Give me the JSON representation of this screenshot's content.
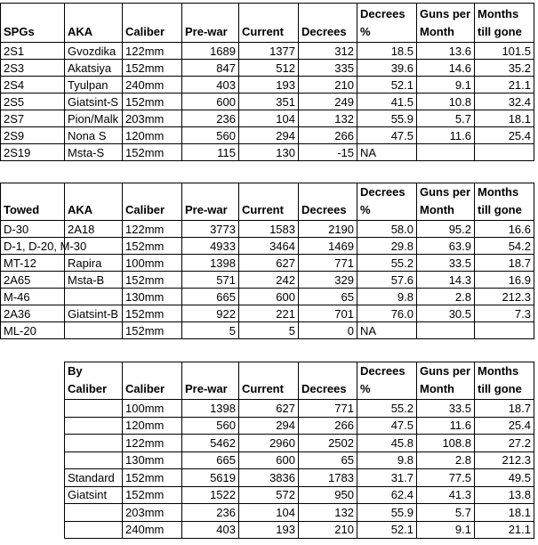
{
  "tables": [
    {
      "header": [
        "SPGs",
        "AKA",
        "Caliber",
        "Pre-war",
        "Current",
        "Decrees",
        "Decrees\n%",
        "Guns per\nMonth",
        "Months\ntill gone"
      ],
      "rows": [
        [
          "2S1",
          "Gvozdika",
          "122mm",
          1689,
          1377,
          312,
          18.5,
          13.6,
          101.5
        ],
        [
          "2S3",
          "Akatsiya",
          "152mm",
          847,
          512,
          335,
          39.6,
          14.6,
          35.2
        ],
        [
          "2S4",
          "Tyulpan",
          "240mm",
          403,
          193,
          210,
          52.1,
          9.1,
          21.1
        ],
        [
          "2S5",
          "Giatsint-S",
          "152mm",
          600,
          351,
          249,
          41.5,
          10.8,
          32.4
        ],
        [
          "2S7",
          "Pion/Malk",
          "203mm",
          236,
          104,
          132,
          55.9,
          5.7,
          18.1
        ],
        [
          "2S9",
          "Nona S",
          "120mm",
          560,
          294,
          266,
          47.5,
          11.6,
          25.4
        ],
        [
          "2S19",
          "Msta-S",
          "152mm",
          115,
          130,
          -15,
          "NA",
          null,
          null
        ]
      ]
    },
    {
      "header": [
        "Towed",
        "AKA",
        "Caliber",
        "Pre-war",
        "Current",
        "Decrees",
        "Decrees\n%",
        "Guns per\nMonth",
        "Months\ntill gone"
      ],
      "rows": [
        [
          "D-30",
          "2A18",
          "122mm",
          3773,
          1583,
          2190,
          "58.0",
          95.2,
          16.6
        ],
        [
          "D-1, D-20, M-30",
          null,
          "152mm",
          4933,
          3464,
          1469,
          29.8,
          63.9,
          54.2
        ],
        [
          "MT-12",
          "Rapira",
          "100mm",
          1398,
          627,
          771,
          55.2,
          33.5,
          18.7
        ],
        [
          "2A65",
          "Msta-B",
          "152mm",
          571,
          242,
          329,
          57.6,
          14.3,
          16.9
        ],
        [
          "M-46",
          null,
          "130mm",
          665,
          600,
          65,
          9.8,
          2.8,
          212.3
        ],
        [
          "2A36",
          "Giatsint-B",
          "152mm",
          922,
          221,
          701,
          "76.0",
          30.5,
          7.3
        ],
        [
          "ML-20",
          null,
          "152mm",
          5,
          5,
          0,
          "NA",
          null,
          null
        ]
      ]
    },
    {
      "header": [
        "By\nCaliber",
        "Caliber",
        "Pre-war",
        "Current",
        "Decrees",
        "Decrees\n%",
        "Guns per\nMonth",
        "Months\ntill gone"
      ],
      "rows": [
        [
          null,
          "100mm",
          1398,
          627,
          771,
          55.2,
          33.5,
          18.7
        ],
        [
          null,
          "120mm",
          560,
          294,
          266,
          47.5,
          11.6,
          25.4
        ],
        [
          null,
          "122mm",
          5462,
          2960,
          2502,
          45.8,
          108.8,
          27.2
        ],
        [
          null,
          "130mm",
          665,
          600,
          65,
          9.8,
          2.8,
          212.3
        ],
        [
          "Standard",
          "152mm",
          5619,
          3836,
          1783,
          31.7,
          77.5,
          49.5
        ],
        [
          "Giatsint",
          "152mm",
          1522,
          572,
          950,
          62.4,
          41.3,
          13.8
        ],
        [
          null,
          "203mm",
          236,
          104,
          132,
          55.9,
          5.7,
          18.1
        ],
        [
          null,
          "240mm",
          403,
          193,
          210,
          52.1,
          9.1,
          21.1
        ]
      ]
    }
  ]
}
